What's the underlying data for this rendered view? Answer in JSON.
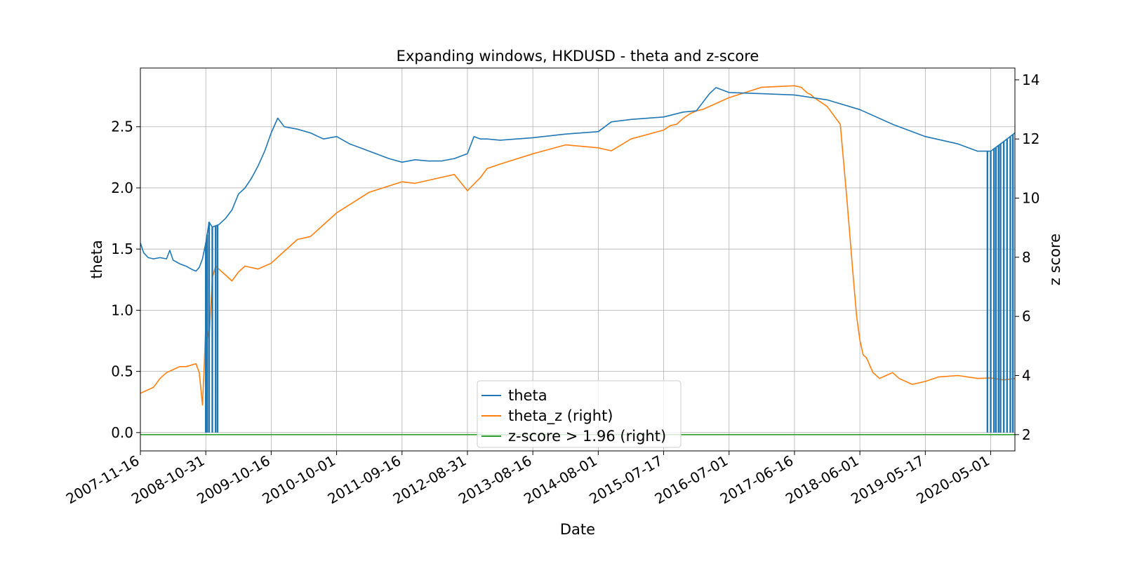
{
  "chart_data": {
    "type": "line",
    "title": "Expanding windows, HKDUSD - theta and z-score",
    "xlabel": "Date",
    "ylabel": "theta",
    "ylabel_right": "z score",
    "grid": true,
    "legend_position": "lower center",
    "x_ticks": [
      "2007-11-16",
      "2008-10-31",
      "2009-10-16",
      "2010-10-01",
      "2011-09-16",
      "2012-08-31",
      "2013-08-16",
      "2014-08-01",
      "2015-07-17",
      "2016-07-01",
      "2017-06-16",
      "2018-06-01",
      "2019-05-17",
      "2020-05-01"
    ],
    "x_range": [
      0,
      13.37
    ],
    "ylim_left": [
      -0.15,
      2.98
    ],
    "yticks_left": [
      "0.0",
      "0.5",
      "1.0",
      "1.5",
      "2.0",
      "2.5"
    ],
    "ylim_right": [
      1.45,
      14.4
    ],
    "yticks_right": [
      "2",
      "4",
      "6",
      "8",
      "10",
      "12",
      "14"
    ],
    "colors": {
      "theta": "#1f77b4",
      "theta_z": "#ff7f0e",
      "zscore": "#2ca02c"
    },
    "series": [
      {
        "name": "theta",
        "axis": "left",
        "x": [
          0,
          0.05,
          0.12,
          0.2,
          0.3,
          0.4,
          0.45,
          0.5,
          0.6,
          0.7,
          0.8,
          0.85,
          0.9,
          0.95,
          1.0,
          1.05,
          1.1,
          1.2,
          1.3,
          1.4,
          1.5,
          1.6,
          1.7,
          1.8,
          1.9,
          2.0,
          2.1,
          2.2,
          2.4,
          2.6,
          2.8,
          3.0,
          3.2,
          3.4,
          3.6,
          3.8,
          4.0,
          4.2,
          4.4,
          4.6,
          4.8,
          5.0,
          5.1,
          5.2,
          5.3,
          5.5,
          6.0,
          6.5,
          7.0,
          7.2,
          7.5,
          8.0,
          8.3,
          8.5,
          8.6,
          8.7,
          8.8,
          9.0,
          9.5,
          10.0,
          10.5,
          11.0,
          11.5,
          12.0,
          12.5,
          12.8,
          13.0,
          13.2,
          13.37
        ],
        "y": [
          1.55,
          1.47,
          1.43,
          1.42,
          1.43,
          1.42,
          1.49,
          1.41,
          1.38,
          1.36,
          1.33,
          1.32,
          1.35,
          1.42,
          1.55,
          1.72,
          1.68,
          1.7,
          1.75,
          1.82,
          1.95,
          2.0,
          2.08,
          2.18,
          2.3,
          2.45,
          2.57,
          2.5,
          2.48,
          2.45,
          2.4,
          2.42,
          2.36,
          2.32,
          2.28,
          2.24,
          2.21,
          2.23,
          2.22,
          2.22,
          2.24,
          2.28,
          2.42,
          2.4,
          2.4,
          2.39,
          2.41,
          2.44,
          2.46,
          2.54,
          2.56,
          2.58,
          2.62,
          2.63,
          2.7,
          2.77,
          2.82,
          2.78,
          2.77,
          2.76,
          2.72,
          2.64,
          2.52,
          2.42,
          2.36,
          2.3,
          2.3,
          2.38,
          2.45
        ]
      },
      {
        "name": "theta_z (right)",
        "axis": "right",
        "x": [
          0,
          0.05,
          0.2,
          0.3,
          0.4,
          0.5,
          0.6,
          0.7,
          0.85,
          0.9,
          0.95,
          0.98,
          1.0,
          1.05,
          1.1,
          1.15,
          1.2,
          1.3,
          1.4,
          1.5,
          1.6,
          1.8,
          2.0,
          2.2,
          2.4,
          2.6,
          2.8,
          3.0,
          3.5,
          4.0,
          4.2,
          4.5,
          4.8,
          5.0,
          5.2,
          5.3,
          5.5,
          6.0,
          6.5,
          7.0,
          7.2,
          7.5,
          8.0,
          8.1,
          8.2,
          8.3,
          8.4,
          8.5,
          8.6,
          8.8,
          9.0,
          9.5,
          10.0,
          10.1,
          10.2,
          10.25,
          10.3,
          10.5,
          10.7,
          10.8,
          10.9,
          10.95,
          11.0,
          11.05,
          11.1,
          11.2,
          11.3,
          11.4,
          11.5,
          11.6,
          11.8,
          12.0,
          12.2,
          12.5,
          12.8,
          13.0,
          13.2,
          13.37
        ],
        "y": [
          3.4,
          3.45,
          3.6,
          3.9,
          4.1,
          4.2,
          4.3,
          4.3,
          4.4,
          4.1,
          3.0,
          4.5,
          5.8,
          5.2,
          7.3,
          7.7,
          7.6,
          7.4,
          7.2,
          7.5,
          7.7,
          7.6,
          7.8,
          8.2,
          8.6,
          8.7,
          9.1,
          9.5,
          10.2,
          10.55,
          10.5,
          10.65,
          10.8,
          10.25,
          10.7,
          11.0,
          11.15,
          11.5,
          11.8,
          11.7,
          11.6,
          12.0,
          12.3,
          12.45,
          12.5,
          12.7,
          12.85,
          12.95,
          13.0,
          13.2,
          13.4,
          13.75,
          13.8,
          13.75,
          13.55,
          13.5,
          13.4,
          13.1,
          12.5,
          10.0,
          7.3,
          6.0,
          5.2,
          4.7,
          4.6,
          4.1,
          3.9,
          4.0,
          4.1,
          3.9,
          3.7,
          3.8,
          3.95,
          4.0,
          3.9,
          3.92,
          3.85,
          3.9
        ]
      },
      {
        "name": "z-score > 1.96 (right)",
        "axis": "right",
        "x": [
          0,
          13.37
        ],
        "y": [
          2,
          2
        ]
      }
    ],
    "theta_spikes_x": [
      1.0,
      1.02,
      1.05,
      1.1,
      1.15,
      1.18,
      12.95,
      13.0,
      13.05,
      13.08,
      13.12,
      13.15,
      13.2,
      13.25,
      13.3,
      13.34
    ]
  }
}
